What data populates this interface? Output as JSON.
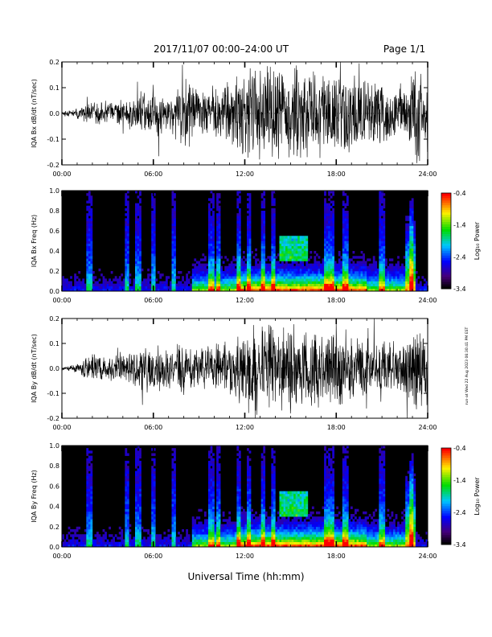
{
  "header": {
    "title": "2017/11/07  00:00–24:00 UT",
    "page": "Page 1/1"
  },
  "footer": {
    "xlabel": "Universal Time (hh:mm)"
  },
  "side_stamp": "run-at Wed 22 Aug 2023 06:30:41 PM EST",
  "chart_data": [
    {
      "type": "line",
      "panel": "bx-waveform",
      "ylabel": "IQA Bx dB/dt (nT/sec)",
      "xlim": [
        0,
        24
      ],
      "ylim": [
        -0.2,
        0.2
      ],
      "x_ticks": [
        "00:00",
        "06:00",
        "12:00",
        "18:00",
        "24:00"
      ],
      "y_ticks": [
        "-0.2",
        "-0.1",
        "0.0",
        "0.1",
        "0.2"
      ],
      "envelope": {
        "x_hours": [
          0,
          1,
          2,
          3,
          4,
          5,
          6,
          7,
          8,
          9,
          10,
          11,
          12,
          13,
          14,
          15,
          16,
          17,
          18,
          19,
          20,
          21,
          22,
          22.7,
          23,
          24
        ],
        "amplitude": [
          0.01,
          0.02,
          0.06,
          0.05,
          0.06,
          0.09,
          0.12,
          0.08,
          0.15,
          0.1,
          0.12,
          0.15,
          0.2,
          0.2,
          0.2,
          0.2,
          0.2,
          0.17,
          0.19,
          0.17,
          0.15,
          0.14,
          0.12,
          0.15,
          0.2,
          0.2
        ]
      }
    },
    {
      "type": "heatmap",
      "panel": "bx-spectrogram",
      "ylabel": "IQA Bx Freq (Hz)",
      "xlim": [
        0,
        24
      ],
      "ylim": [
        0,
        1.0
      ],
      "x_ticks": [
        "00:00",
        "06:00",
        "12:00",
        "18:00",
        "24:00"
      ],
      "y_ticks": [
        "0.0",
        "0.2",
        "0.4",
        "0.6",
        "0.8",
        "1.0"
      ],
      "colorbar": {
        "label": "Log₁₀ Power",
        "range": [
          -3.4,
          -0.4
        ],
        "ticks": [
          "-0.4",
          "-1.4",
          "-2.4",
          "-3.4"
        ]
      },
      "features": {
        "intensified_band_hours": [
          8.5,
          22.5
        ],
        "pulsation_event": {
          "center_hour": 15.2,
          "freq_range_hz": [
            0.3,
            0.55
          ]
        },
        "vertical_bursts_hours": [
          1.8,
          4.3,
          5.0,
          6.0,
          7.3,
          9.8,
          10.3,
          11.6,
          12.3,
          13.2,
          13.9,
          17.4,
          17.7,
          18.6,
          21.0,
          22.9
        ]
      }
    },
    {
      "type": "line",
      "panel": "by-waveform",
      "ylabel": "IQA By dB/dt (nT/sec)",
      "xlim": [
        0,
        24
      ],
      "ylim": [
        -0.2,
        0.2
      ],
      "x_ticks": [
        "00:00",
        "06:00",
        "12:00",
        "18:00",
        "24:00"
      ],
      "y_ticks": [
        "-0.2",
        "-0.1",
        "0.0",
        "0.1",
        "0.2"
      ],
      "envelope": {
        "x_hours": [
          0,
          1,
          2,
          3,
          4,
          5,
          6,
          7,
          8,
          9,
          10,
          11,
          12,
          13,
          14,
          15,
          16,
          17,
          18,
          19,
          20,
          21,
          22,
          22.7,
          23,
          24
        ],
        "amplitude": [
          0.008,
          0.02,
          0.07,
          0.05,
          0.06,
          0.09,
          0.13,
          0.08,
          0.14,
          0.09,
          0.11,
          0.14,
          0.2,
          0.2,
          0.19,
          0.2,
          0.19,
          0.16,
          0.17,
          0.15,
          0.13,
          0.12,
          0.11,
          0.14,
          0.2,
          0.2
        ]
      }
    },
    {
      "type": "heatmap",
      "panel": "by-spectrogram",
      "ylabel": "IQA By Freq (Hz)",
      "xlim": [
        0,
        24
      ],
      "ylim": [
        0,
        1.0
      ],
      "x_ticks": [
        "00:00",
        "06:00",
        "12:00",
        "18:00",
        "24:00"
      ],
      "y_ticks": [
        "0.0",
        "0.2",
        "0.4",
        "0.6",
        "0.8",
        "1.0"
      ],
      "colorbar": {
        "label": "Log₁₀ Power",
        "range": [
          -3.4,
          -0.4
        ],
        "ticks": [
          "-0.4",
          "-1.4",
          "-2.4",
          "-3.4"
        ]
      },
      "features": {
        "intensified_band_hours": [
          8.5,
          22.5
        ],
        "pulsation_event": {
          "center_hour": 15.2,
          "freq_range_hz": [
            0.3,
            0.55
          ]
        },
        "vertical_bursts_hours": [
          1.8,
          4.3,
          5.0,
          6.0,
          7.3,
          9.8,
          10.3,
          11.6,
          12.3,
          13.2,
          13.9,
          17.4,
          17.7,
          18.6,
          21.0,
          22.9
        ]
      }
    }
  ]
}
